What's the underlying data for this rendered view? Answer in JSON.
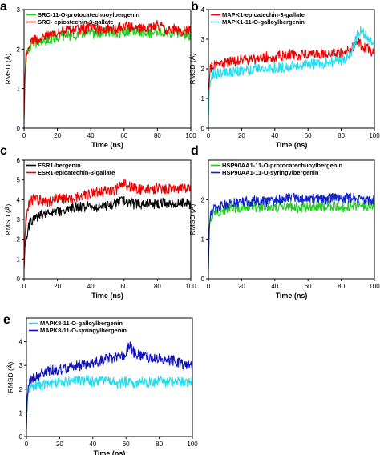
{
  "chart_data": [
    {
      "panel": "a",
      "type": "line",
      "xlabel": "Time (ns)",
      "ylabel": "RMSD (Å)",
      "xlim": [
        0,
        100
      ],
      "ylim": [
        0,
        3
      ],
      "xticks": [
        0,
        20,
        40,
        60,
        80,
        100
      ],
      "yticks": [
        0,
        1,
        2,
        3
      ],
      "legend_position": "top-left",
      "series": [
        {
          "name": "SRC-11-O-protocatechuoylbergenin",
          "color": "#22cc22",
          "x": [
            0,
            0.5,
            1,
            2,
            3,
            5,
            8,
            10,
            15,
            20,
            25,
            30,
            35,
            40,
            45,
            50,
            55,
            60,
            65,
            70,
            75,
            80,
            85,
            90,
            95,
            100
          ],
          "values": [
            0.2,
            1.2,
            1.7,
            1.9,
            2.0,
            2.1,
            2.15,
            2.2,
            2.25,
            2.3,
            2.35,
            2.35,
            2.4,
            2.4,
            2.4,
            2.45,
            2.4,
            2.4,
            2.45,
            2.45,
            2.4,
            2.45,
            2.4,
            2.4,
            2.4,
            2.35
          ]
        },
        {
          "name": "SRC- epicatechin-3-gallate",
          "color": "#ee0000",
          "x": [
            0,
            0.5,
            1,
            2,
            3,
            5,
            8,
            10,
            15,
            20,
            25,
            30,
            35,
            40,
            45,
            50,
            55,
            60,
            65,
            70,
            75,
            80,
            85,
            90,
            95,
            100
          ],
          "values": [
            0.2,
            1.3,
            1.8,
            2.0,
            2.1,
            2.2,
            2.25,
            2.3,
            2.35,
            2.4,
            2.45,
            2.5,
            2.5,
            2.55,
            2.5,
            2.55,
            2.5,
            2.6,
            2.55,
            2.5,
            2.55,
            2.6,
            2.5,
            2.5,
            2.45,
            2.5
          ]
        }
      ]
    },
    {
      "panel": "b",
      "type": "line",
      "xlabel": "Time (ns)",
      "ylabel": "RMSD (Å)",
      "xlim": [
        0,
        100
      ],
      "ylim": [
        0,
        4
      ],
      "xticks": [
        0,
        20,
        40,
        60,
        80,
        100
      ],
      "xtick_labels": [
        "0",
        "20",
        "40",
        "60",
        "80",
        "100"
      ],
      "yticks": [
        0,
        1,
        2,
        3,
        4
      ],
      "legend_position": "top-left",
      "series": [
        {
          "name": "MAPK1-epicatechin-3-gallate",
          "color": "#ee0000",
          "x": [
            0,
            0.5,
            1,
            2,
            5,
            10,
            15,
            20,
            25,
            30,
            35,
            40,
            45,
            50,
            55,
            60,
            65,
            70,
            75,
            80,
            85,
            88,
            90,
            92,
            95,
            98,
            100
          ],
          "values": [
            0.5,
            1.6,
            2.0,
            2.1,
            2.15,
            2.2,
            2.25,
            2.3,
            2.3,
            2.35,
            2.4,
            2.4,
            2.45,
            2.5,
            2.45,
            2.5,
            2.55,
            2.5,
            2.5,
            2.55,
            2.6,
            2.8,
            2.9,
            2.8,
            2.7,
            2.6,
            2.55
          ]
        },
        {
          "name": "MAPK1-11-O-galloylbergenin",
          "color": "#22ddee",
          "x": [
            0,
            0.5,
            1,
            2,
            5,
            10,
            15,
            20,
            25,
            30,
            35,
            40,
            45,
            50,
            55,
            60,
            65,
            70,
            75,
            80,
            85,
            88,
            90,
            92,
            95,
            98,
            100
          ],
          "values": [
            0.3,
            1.2,
            1.6,
            1.8,
            1.85,
            1.9,
            1.9,
            1.95,
            1.95,
            2.0,
            2.0,
            2.05,
            2.05,
            2.1,
            2.1,
            2.15,
            2.15,
            2.2,
            2.25,
            2.3,
            2.45,
            2.8,
            3.2,
            3.3,
            3.1,
            2.9,
            2.8
          ]
        }
      ]
    },
    {
      "panel": "c",
      "type": "line",
      "xlabel": "Time (ns)",
      "ylabel": "RMSD (Å)",
      "xlim": [
        0,
        100
      ],
      "ylim": [
        0,
        6
      ],
      "xticks": [
        0,
        20,
        40,
        60,
        80,
        100
      ],
      "yticks": [
        0,
        1,
        2,
        3,
        4,
        5,
        6
      ],
      "legend_position": "top-left",
      "series": [
        {
          "name": "ESR1-bergenin",
          "color": "#000000",
          "x": [
            0,
            0.5,
            1,
            2,
            3,
            5,
            10,
            15,
            20,
            25,
            30,
            35,
            40,
            45,
            50,
            55,
            60,
            65,
            70,
            75,
            80,
            85,
            90,
            95,
            100
          ],
          "values": [
            0.5,
            1.5,
            2.0,
            2.4,
            2.7,
            3.0,
            3.2,
            3.3,
            3.4,
            3.5,
            3.6,
            3.6,
            3.7,
            3.6,
            3.7,
            3.8,
            3.9,
            3.8,
            3.75,
            3.8,
            3.8,
            3.85,
            3.8,
            3.8,
            3.8
          ]
        },
        {
          "name": "ESR1-epicatechin-3-gallate",
          "color": "#ee0000",
          "x": [
            0,
            0.5,
            1,
            2,
            3,
            5,
            10,
            15,
            20,
            25,
            30,
            35,
            40,
            45,
            50,
            55,
            60,
            65,
            70,
            75,
            80,
            85,
            90,
            95,
            100
          ],
          "values": [
            0.5,
            2.0,
            3.0,
            3.5,
            3.8,
            4.0,
            4.0,
            3.9,
            4.1,
            4.0,
            4.1,
            4.2,
            4.3,
            4.4,
            4.4,
            4.5,
            4.8,
            4.6,
            4.5,
            4.5,
            4.6,
            4.55,
            4.6,
            4.6,
            4.6
          ]
        }
      ]
    },
    {
      "panel": "d",
      "type": "line",
      "xlabel": "Time (ns)",
      "ylabel": "RMSD (Å)",
      "xlim": [
        0,
        100
      ],
      "ylim": [
        0,
        3
      ],
      "xticks": [
        0,
        20,
        40,
        60,
        80,
        100
      ],
      "yticks": [
        0,
        1,
        2
      ],
      "legend_position": "top-left",
      "series": [
        {
          "name": "HSP90AA1-11-O-protocatechuoylbergenin",
          "color": "#22cc22",
          "x": [
            0,
            0.5,
            1,
            2,
            5,
            10,
            15,
            20,
            25,
            30,
            35,
            40,
            45,
            50,
            55,
            60,
            65,
            70,
            75,
            80,
            85,
            90,
            95,
            100
          ],
          "values": [
            0.2,
            1.2,
            1.5,
            1.6,
            1.7,
            1.75,
            1.8,
            1.8,
            1.85,
            1.8,
            1.85,
            1.8,
            1.85,
            1.8,
            1.8,
            1.8,
            1.85,
            1.8,
            1.85,
            1.8,
            1.85,
            1.85,
            1.85,
            1.85
          ]
        },
        {
          "name": "HSP90AA1-11-O-syringylbergenin",
          "color": "#1122cc",
          "x": [
            0,
            0.5,
            1,
            2,
            5,
            10,
            15,
            20,
            25,
            30,
            35,
            40,
            45,
            50,
            55,
            60,
            65,
            70,
            75,
            80,
            85,
            90,
            95,
            100
          ],
          "values": [
            0.2,
            1.3,
            1.6,
            1.7,
            1.8,
            1.85,
            1.9,
            1.95,
            1.95,
            2.0,
            1.95,
            2.0,
            2.0,
            2.05,
            2.0,
            2.0,
            2.05,
            2.0,
            2.05,
            2.0,
            2.05,
            2.0,
            2.0,
            2.0
          ]
        }
      ]
    },
    {
      "panel": "e",
      "type": "line",
      "xlabel": "Time (ns)",
      "ylabel": "RMSD (Å)",
      "xlim": [
        0,
        100
      ],
      "ylim": [
        0,
        5
      ],
      "xticks": [
        0,
        20,
        40,
        60,
        80,
        100
      ],
      "yticks": [
        0,
        1,
        2,
        3,
        4
      ],
      "legend_position": "top-left",
      "series": [
        {
          "name": "MAPK8-11-O-galloylbergenin",
          "color": "#22ddee",
          "x": [
            0,
            0.5,
            1,
            2,
            5,
            10,
            15,
            20,
            25,
            30,
            35,
            40,
            45,
            50,
            55,
            60,
            65,
            70,
            75,
            80,
            85,
            90,
            95,
            100
          ],
          "values": [
            0.3,
            1.4,
            1.9,
            2.1,
            2.2,
            2.2,
            2.25,
            2.3,
            2.3,
            2.35,
            2.4,
            2.3,
            2.35,
            2.3,
            2.25,
            2.3,
            2.25,
            2.3,
            2.3,
            2.35,
            2.3,
            2.35,
            2.3,
            2.35
          ]
        },
        {
          "name": "MAPK8-11-O-syringylbergenin",
          "color": "#1111bb",
          "x": [
            0,
            0.5,
            1,
            2,
            5,
            10,
            15,
            20,
            25,
            30,
            35,
            40,
            45,
            50,
            55,
            60,
            62,
            65,
            70,
            75,
            80,
            85,
            90,
            95,
            100
          ],
          "values": [
            0.3,
            1.6,
            2.1,
            2.3,
            2.5,
            2.7,
            2.8,
            2.8,
            2.9,
            3.0,
            3.0,
            3.1,
            3.2,
            3.3,
            3.3,
            3.5,
            3.9,
            3.5,
            3.4,
            3.3,
            3.3,
            3.2,
            3.2,
            3.0,
            3.0
          ]
        }
      ]
    }
  ]
}
